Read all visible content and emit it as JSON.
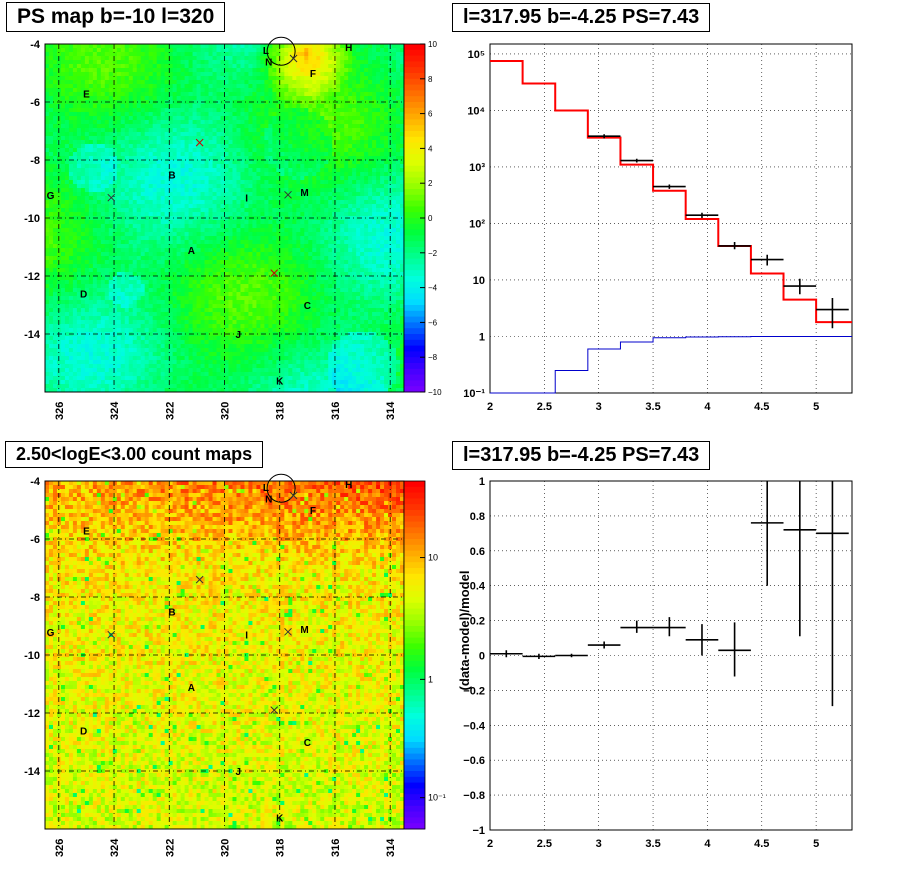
{
  "panels": {
    "ps_map": {
      "title": "PS map b=-10 l=320"
    },
    "count_map": {
      "title": "2.50<logE<3.00 count maps"
    },
    "spectrum": {
      "title": "l=317.95 b=-4.25 PS=7.43"
    },
    "residual": {
      "title": "l=317.95 b=-4.25 PS=7.43"
    }
  },
  "colors": {
    "data": "#000000",
    "model": "#ff0000",
    "source_model": "#0000cc",
    "grid": "#000000"
  },
  "chart_data": [
    {
      "id": "ps_map",
      "type": "heatmap",
      "title": "PS map b=-10 l=320",
      "x_ticks": [
        "326",
        "324",
        "322",
        "320",
        "318",
        "316",
        "314"
      ],
      "y_ticks": [
        "-4",
        "-6",
        "-8",
        "-10",
        "-12",
        "-14"
      ],
      "xlim": [
        326.5,
        313.5
      ],
      "ylim": [
        -16,
        -4
      ],
      "colorbar": {
        "min": -10,
        "max": 10,
        "ticks": [
          "10",
          "8",
          "6",
          "4",
          "2",
          "0",
          "−2",
          "−4",
          "−6",
          "−8",
          "−10"
        ]
      },
      "labels": [
        {
          "text": "H",
          "l": 315.5,
          "b": -4.1
        },
        {
          "text": "L",
          "l": 318.5,
          "b": -4.2
        },
        {
          "text": "N",
          "l": 318.4,
          "b": -4.6
        },
        {
          "text": "F",
          "l": 316.8,
          "b": -5.0
        },
        {
          "text": "E",
          "l": 325.0,
          "b": -5.7
        },
        {
          "text": "B",
          "l": 321.9,
          "b": -8.5
        },
        {
          "text": "G",
          "l": 326.3,
          "b": -9.2
        },
        {
          "text": "I",
          "l": 319.2,
          "b": -9.3
        },
        {
          "text": "M",
          "l": 317.1,
          "b": -9.1
        },
        {
          "text": "A",
          "l": 321.2,
          "b": -11.1
        },
        {
          "text": "D",
          "l": 325.1,
          "b": -12.6
        },
        {
          "text": "C",
          "l": 317.0,
          "b": -13.0
        },
        {
          "text": "J",
          "l": 319.5,
          "b": -14.0
        },
        {
          "text": "K",
          "l": 318.0,
          "b": -15.6
        }
      ],
      "markers": [
        {
          "l": 320.9,
          "b": -7.4,
          "color": "#cc0000"
        },
        {
          "l": 324.1,
          "b": -9.3,
          "color": "#333333"
        },
        {
          "l": 317.7,
          "b": -9.2,
          "color": "#333333"
        },
        {
          "l": 318.2,
          "b": -11.9,
          "color": "#cc0000"
        },
        {
          "l": 317.5,
          "b": -4.5,
          "color": "#333333"
        }
      ],
      "circle": {
        "l": 317.95,
        "b": -4.25
      }
    },
    {
      "id": "count_map",
      "type": "heatmap",
      "title": "2.50<logE<3.00 count maps",
      "x_ticks": [
        "326",
        "324",
        "322",
        "320",
        "318",
        "316",
        "314"
      ],
      "y_ticks": [
        "-4",
        "-6",
        "-8",
        "-10",
        "-12",
        "-14"
      ],
      "xlim": [
        326.5,
        313.5
      ],
      "ylim": [
        -16,
        -4
      ],
      "colorbar": {
        "scale": "log",
        "ticks": [
          "10",
          "1",
          "10⁻¹"
        ]
      },
      "labels": [
        {
          "text": "H",
          "l": 315.5,
          "b": -4.1
        },
        {
          "text": "L",
          "l": 318.5,
          "b": -4.2
        },
        {
          "text": "N",
          "l": 318.4,
          "b": -4.6
        },
        {
          "text": "F",
          "l": 316.8,
          "b": -5.0
        },
        {
          "text": "E",
          "l": 325.0,
          "b": -5.7
        },
        {
          "text": "B",
          "l": 321.9,
          "b": -8.5
        },
        {
          "text": "G",
          "l": 326.3,
          "b": -9.2
        },
        {
          "text": "I",
          "l": 319.2,
          "b": -9.3
        },
        {
          "text": "M",
          "l": 317.1,
          "b": -9.1
        },
        {
          "text": "A",
          "l": 321.2,
          "b": -11.1
        },
        {
          "text": "D",
          "l": 325.1,
          "b": -12.6
        },
        {
          "text": "C",
          "l": 317.0,
          "b": -13.0
        },
        {
          "text": "J",
          "l": 319.5,
          "b": -14.0
        },
        {
          "text": "K",
          "l": 318.0,
          "b": -15.6
        }
      ],
      "markers": [
        {
          "l": 320.9,
          "b": -7.4,
          "color": "#333333"
        },
        {
          "l": 324.1,
          "b": -9.3,
          "color": "#333333"
        },
        {
          "l": 317.7,
          "b": -9.2,
          "color": "#333333"
        },
        {
          "l": 318.2,
          "b": -11.9,
          "color": "#333333"
        },
        {
          "l": 317.5,
          "b": -4.5,
          "color": "#333333"
        }
      ],
      "circle": {
        "l": 317.95,
        "b": -4.25
      }
    },
    {
      "id": "spectrum",
      "type": "line",
      "title": "l=317.95 b=-4.25 PS=7.43",
      "xlim": [
        2,
        5.33
      ],
      "ylim": [
        0.1,
        150000
      ],
      "yscale": "log",
      "x_ticks": [
        "2",
        "2.5",
        "3",
        "3.5",
        "4",
        "4.5",
        "5"
      ],
      "y_ticks": [
        "10⁻¹",
        "1",
        "10",
        "10²",
        "10³",
        "10⁴",
        "10⁵"
      ],
      "grid": true,
      "data": [
        {
          "x": 3.05,
          "xerr": 0.15,
          "y": 3500,
          "ylo": 3200,
          "yhi": 3800
        },
        {
          "x": 3.35,
          "xerr": 0.15,
          "y": 1300,
          "ylo": 1200,
          "yhi": 1400
        },
        {
          "x": 3.65,
          "xerr": 0.15,
          "y": 450,
          "ylo": 410,
          "yhi": 490
        },
        {
          "x": 3.95,
          "xerr": 0.15,
          "y": 140,
          "ylo": 125,
          "yhi": 155
        },
        {
          "x": 4.25,
          "xerr": 0.15,
          "y": 40,
          "ylo": 35,
          "yhi": 47
        },
        {
          "x": 4.55,
          "xerr": 0.15,
          "y": 23,
          "ylo": 18,
          "yhi": 28
        },
        {
          "x": 4.85,
          "xerr": 0.15,
          "y": 7.8,
          "ylo": 5.6,
          "yhi": 10.5
        },
        {
          "x": 5.15,
          "xerr": 0.15,
          "y": 3.0,
          "ylo": 1.4,
          "yhi": 4.8
        }
      ],
      "model": {
        "edges": [
          2.0,
          2.3,
          2.6,
          2.9,
          3.2,
          3.5,
          3.8,
          4.1,
          4.4,
          4.7,
          5.0,
          5.33
        ],
        "values": [
          75000,
          30000,
          10000,
          3300,
          1100,
          380,
          120,
          40,
          13,
          4.5,
          1.8
        ]
      },
      "source_model": {
        "edges": [
          2.0,
          2.3,
          2.6,
          2.9,
          3.2,
          3.5,
          3.8,
          4.1,
          4.4,
          4.7,
          5.0,
          5.33
        ],
        "values": [
          0.1,
          0.1,
          0.25,
          0.6,
          0.8,
          0.95,
          0.98,
          0.99,
          1.0,
          1.0,
          1.0,
          1.0
        ]
      }
    },
    {
      "id": "residual",
      "type": "scatter",
      "title": "l=317.95 b=-4.25 PS=7.43",
      "ylabel": "(data-model)/model",
      "xlim": [
        2,
        5.33
      ],
      "ylim": [
        -1,
        1
      ],
      "x_ticks": [
        "2",
        "2.5",
        "3",
        "3.5",
        "4",
        "4.5",
        "5"
      ],
      "y_ticks": [
        "1",
        "0.8",
        "0.6",
        "0.4",
        "0.2",
        "0",
        "−0.2",
        "−0.4",
        "−0.6",
        "−0.8",
        "−1"
      ],
      "grid": true,
      "data": [
        {
          "x": 2.15,
          "xerr": 0.15,
          "y": 0.01,
          "ylo": -0.01,
          "yhi": 0.03
        },
        {
          "x": 2.45,
          "xerr": 0.15,
          "y": -0.005,
          "ylo": -0.02,
          "yhi": 0.01
        },
        {
          "x": 2.75,
          "xerr": 0.15,
          "y": 0.0,
          "ylo": -0.01,
          "yhi": 0.01
        },
        {
          "x": 3.05,
          "xerr": 0.15,
          "y": 0.06,
          "ylo": 0.04,
          "yhi": 0.08
        },
        {
          "x": 3.35,
          "xerr": 0.15,
          "y": 0.16,
          "ylo": 0.13,
          "yhi": 0.2
        },
        {
          "x": 3.65,
          "xerr": 0.15,
          "y": 0.16,
          "ylo": 0.11,
          "yhi": 0.22
        },
        {
          "x": 3.95,
          "xerr": 0.15,
          "y": 0.09,
          "ylo": 0.0,
          "yhi": 0.18
        },
        {
          "x": 4.25,
          "xerr": 0.15,
          "y": 0.03,
          "ylo": -0.12,
          "yhi": 0.19
        },
        {
          "x": 4.55,
          "xerr": 0.15,
          "y": 0.76,
          "ylo": 0.4,
          "yhi": 1.0
        },
        {
          "x": 4.85,
          "xerr": 0.15,
          "y": 0.72,
          "ylo": 0.11,
          "yhi": 1.0
        },
        {
          "x": 5.15,
          "xerr": 0.15,
          "y": 0.7,
          "ylo": -0.29,
          "yhi": 1.0
        }
      ]
    }
  ]
}
